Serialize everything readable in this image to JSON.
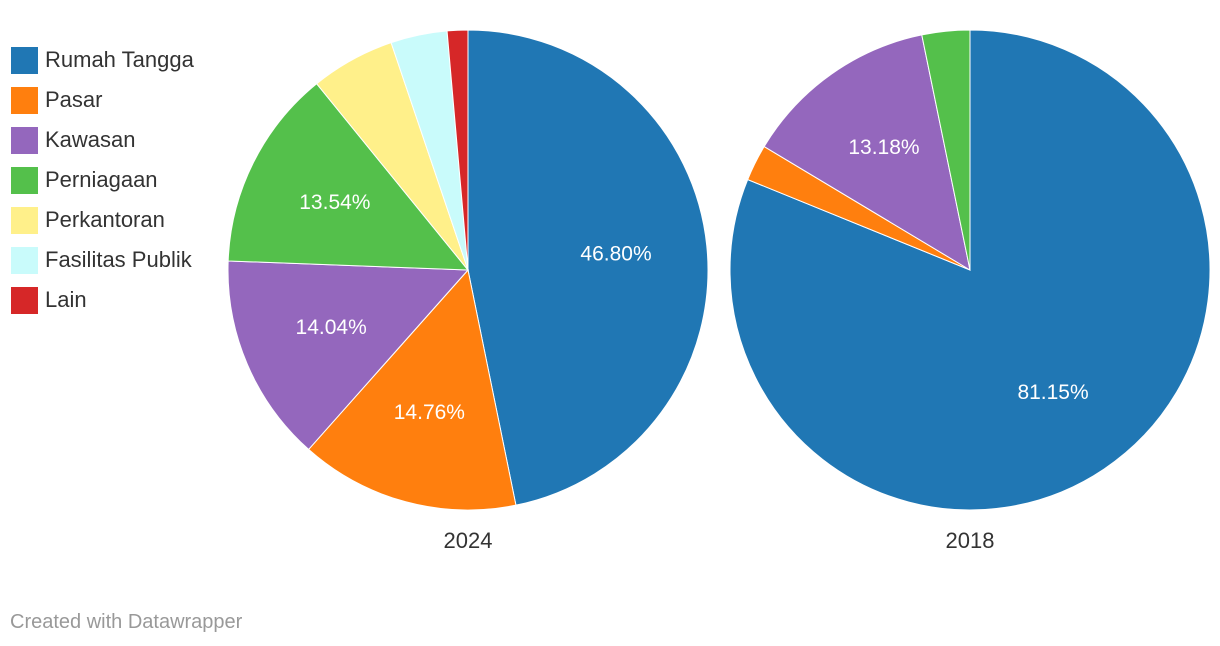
{
  "chart_data": [
    {
      "type": "pie",
      "title": "2024",
      "categories": [
        "Rumah Tangga",
        "Pasar",
        "Kawasan",
        "Perniagaan",
        "Perkantoran",
        "Fasilitas Publik",
        "Lain"
      ],
      "values": [
        46.8,
        14.76,
        14.04,
        13.54,
        5.67,
        3.8,
        1.39
      ],
      "data_labels": [
        "46.80%",
        "14.76%",
        "14.04%",
        "13.54%",
        "",
        "",
        ""
      ]
    },
    {
      "type": "pie",
      "title": "2018",
      "categories": [
        "Rumah Tangga",
        "Pasar",
        "Kawasan",
        "Perniagaan",
        "Perkantoran",
        "Fasilitas Publik",
        "Lain"
      ],
      "values": [
        81.15,
        2.45,
        13.18,
        3.22,
        0,
        0,
        0
      ],
      "data_labels": [
        "81.15%",
        "",
        "13.18%",
        "",
        "",
        "",
        ""
      ]
    }
  ],
  "legend": {
    "placement": "left",
    "items": [
      {
        "label": "Rumah Tangga",
        "color": "#2077b4"
      },
      {
        "label": "Pasar",
        "color": "#ff7f0e"
      },
      {
        "label": "Kawasan",
        "color": "#9467bd"
      },
      {
        "label": "Perniagaan",
        "color": "#54c04b"
      },
      {
        "label": "Perkantoran",
        "color": "#fff08a"
      },
      {
        "label": "Fasilitas Publik",
        "color": "#c9fbfb"
      },
      {
        "label": "Lain",
        "color": "#d62728"
      }
    ]
  },
  "footer": {
    "credit": "Created with Datawrapper"
  }
}
